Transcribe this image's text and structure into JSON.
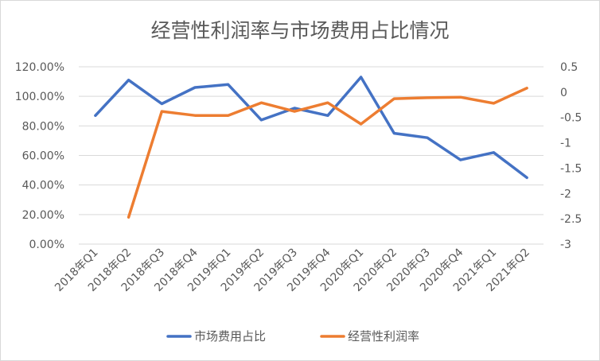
{
  "chart_data": {
    "type": "line",
    "title": "经营性利润率与市场费用占比情况",
    "categories": [
      "2018年Q1",
      "2018年Q2",
      "2018年Q3",
      "2018年Q4",
      "2019年Q1",
      "2019年Q2",
      "2019年Q3",
      "2019年Q4",
      "2020年Q1",
      "2020年Q2",
      "2020年Q3",
      "2020年Q4",
      "2021年Q1",
      "2021年Q2"
    ],
    "y_left": {
      "ylim": [
        0,
        1.2
      ],
      "ticks": [
        0,
        0.2,
        0.4,
        0.6,
        0.8,
        1.0,
        1.2
      ],
      "tick_labels": [
        "0.00%",
        "20.00%",
        "40.00%",
        "60.00%",
        "80.00%",
        "100.00%",
        "120.00%"
      ]
    },
    "y_right": {
      "ylim": [
        -3,
        0.5
      ],
      "ticks": [
        -3,
        -2.5,
        -2,
        -1.5,
        -1,
        -0.5,
        0,
        0.5
      ],
      "tick_labels": [
        "-3",
        "-2.5",
        "-2",
        "-1.5",
        "-1",
        "-0.5",
        "0",
        "0.5"
      ]
    },
    "series": [
      {
        "name": "市场费用占比",
        "axis": "left",
        "color": "#4472C4",
        "values": [
          0.87,
          1.11,
          0.95,
          1.06,
          1.08,
          0.84,
          0.92,
          0.87,
          1.13,
          0.75,
          0.72,
          0.57,
          0.62,
          0.45
        ]
      },
      {
        "name": "经营性利润率",
        "axis": "right",
        "color": "#ED7D31",
        "values": [
          null,
          -2.47,
          -0.38,
          -0.46,
          -0.46,
          -0.21,
          -0.38,
          -0.21,
          -0.63,
          -0.13,
          -0.11,
          -0.1,
          -0.22,
          0.08
        ]
      }
    ],
    "grid": true,
    "legend": "bottom"
  }
}
